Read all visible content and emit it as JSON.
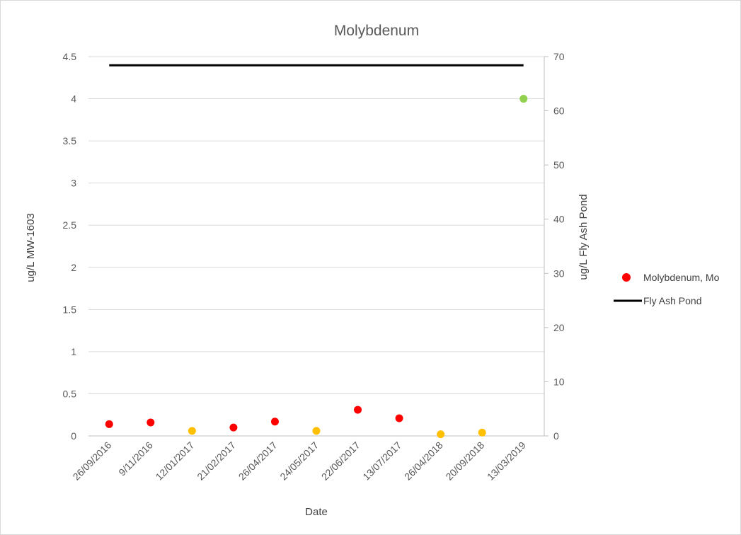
{
  "chart_data": {
    "type": "scatter",
    "title": "Molybdenum",
    "xlabel": "Date",
    "ylabel": "ug/L MW-1603",
    "y2label": "ug/L Fly Ash Pond",
    "categories": [
      "26/09/2016",
      "9/11/2016",
      "12/01/2017",
      "21/02/2017",
      "26/04/2017",
      "24/05/2017",
      "22/06/2017",
      "13/07/2017",
      "26/04/2018",
      "20/09/2018",
      "13/03/2019"
    ],
    "ylim": [
      0,
      4.5
    ],
    "y_ticks": [
      "0",
      "0.5",
      "1",
      "1.5",
      "2",
      "2.5",
      "3",
      "3.5",
      "4",
      "4.5"
    ],
    "y2lim": [
      0,
      70
    ],
    "y2_ticks": [
      "0",
      "10",
      "20",
      "30",
      "40",
      "50",
      "60",
      "70"
    ],
    "grid": true,
    "legend_position": "right",
    "series": [
      {
        "name": "Molybdenum, Mo",
        "type": "scatter",
        "axis": "left",
        "legend_color": "#ff0000",
        "values": [
          0.14,
          0.16,
          0.06,
          0.1,
          0.17,
          0.06,
          0.31,
          0.21,
          0.02,
          0.04,
          4.0
        ],
        "colors": [
          "#ff0000",
          "#ff0000",
          "#ffc000",
          "#ff0000",
          "#ff0000",
          "#ffc000",
          "#ff0000",
          "#ff0000",
          "#ffc000",
          "#ffc000",
          "#92d050"
        ]
      },
      {
        "name": "Fly Ash Pond",
        "type": "line",
        "axis": "right",
        "color": "#000000",
        "values": [
          68.4,
          68.4,
          68.4,
          68.4,
          68.4,
          68.4,
          68.4,
          68.4,
          68.4,
          68.4,
          68.4
        ]
      }
    ]
  }
}
